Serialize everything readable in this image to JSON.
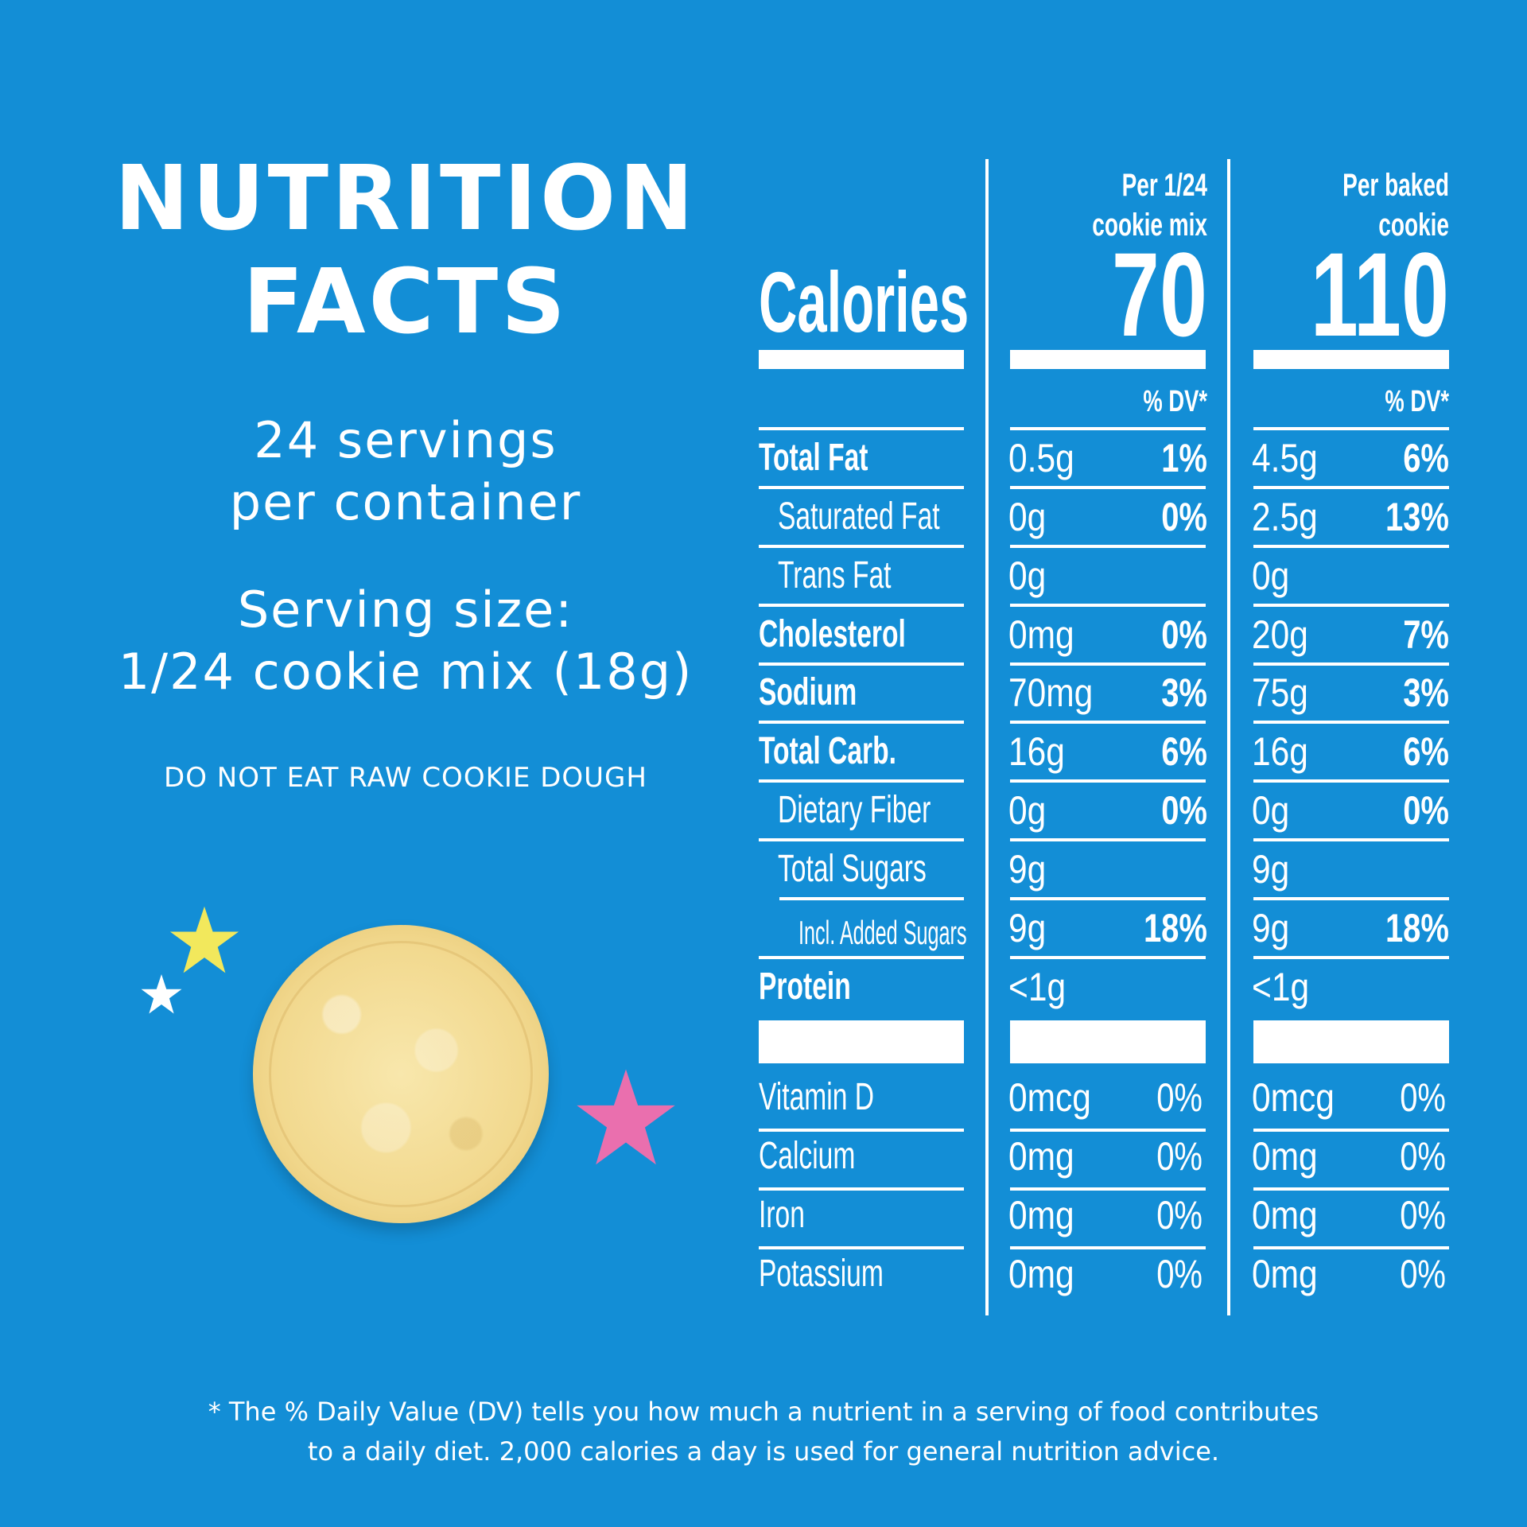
{
  "left": {
    "title_line1": "NUTRITION",
    "title_line2": "FACTS",
    "servings_line1": "24 servings",
    "servings_line2": "per container",
    "serving_size_line1": "Serving size:",
    "serving_size_line2": "1/24 cookie mix (18g)",
    "warning": "DO NOT EAT RAW COOKIE DOUGH"
  },
  "colors": {
    "background": "#138ed6",
    "text": "#ffffff",
    "star_yellow": "#f2e85c",
    "star_white": "#ffffff",
    "star_pink": "#ea6fae",
    "cookie": "#f2d98f"
  },
  "decorations": [
    "star-yellow-icon",
    "star-white-icon",
    "star-pink-icon",
    "cookie-image"
  ],
  "table": {
    "calories_label": "Calories",
    "columns": [
      {
        "header_line1": "Per 1/24",
        "header_line2": "cookie mix",
        "calories": "70",
        "dv_header": "% DV*"
      },
      {
        "header_line1": "Per baked",
        "header_line2": "cookie",
        "calories": "110",
        "dv_header": "% DV*"
      }
    ],
    "rows": [
      {
        "label": "Total Fat",
        "style": "bold",
        "mix_amount": "0.5g",
        "mix_dv": "1%",
        "baked_amount": "4.5g",
        "baked_dv": "6%"
      },
      {
        "label": "Saturated Fat",
        "style": "indent",
        "mix_amount": "0g",
        "mix_dv": "0%",
        "baked_amount": "2.5g",
        "baked_dv": "13%"
      },
      {
        "label": "Trans Fat",
        "style": "indent",
        "mix_amount": "0g",
        "mix_dv": "",
        "baked_amount": "0g",
        "baked_dv": ""
      },
      {
        "label": "Cholesterol",
        "style": "bold",
        "mix_amount": "0mg",
        "mix_dv": "0%",
        "baked_amount": "20g",
        "baked_dv": "7%"
      },
      {
        "label": "Sodium",
        "style": "bold",
        "mix_amount": "70mg",
        "mix_dv": "3%",
        "baked_amount": "75g",
        "baked_dv": "3%"
      },
      {
        "label": "Total Carb.",
        "style": "bold",
        "mix_amount": "16g",
        "mix_dv": "6%",
        "baked_amount": "16g",
        "baked_dv": "6%"
      },
      {
        "label": "Dietary Fiber",
        "style": "indent",
        "mix_amount": "0g",
        "mix_dv": "0%",
        "baked_amount": "0g",
        "baked_dv": "0%"
      },
      {
        "label": "Total Sugars",
        "style": "indent",
        "mix_amount": "9g",
        "mix_dv": "",
        "baked_amount": "9g",
        "baked_dv": ""
      },
      {
        "label": "Incl. Added Sugars",
        "style": "indent2",
        "mix_amount": "9g",
        "mix_dv": "18%",
        "baked_amount": "9g",
        "baked_dv": "18%"
      },
      {
        "label": "Protein",
        "style": "bold",
        "mix_amount": "<1g",
        "mix_dv": "",
        "baked_amount": "<1g",
        "baked_dv": ""
      }
    ],
    "vitamins": [
      {
        "label": "Vitamin D",
        "mix_amount": "0mcg",
        "mix_dv": "0%",
        "baked_amount": "0mcg",
        "baked_dv": "0%"
      },
      {
        "label": "Calcium",
        "mix_amount": "0mg",
        "mix_dv": "0%",
        "baked_amount": "0mg",
        "baked_dv": "0%"
      },
      {
        "label": "Iron",
        "mix_amount": "0mg",
        "mix_dv": "0%",
        "baked_amount": "0mg",
        "baked_dv": "0%"
      },
      {
        "label": "Potassium",
        "mix_amount": "0mg",
        "mix_dv": "0%",
        "baked_amount": "0mg",
        "baked_dv": "0%"
      }
    ]
  },
  "footnote": {
    "line1": "* The % Daily Value (DV) tells you how much a nutrient in a serving of food contributes",
    "line2": "to a daily diet. 2,000 calories a day is used for general nutrition advice."
  }
}
